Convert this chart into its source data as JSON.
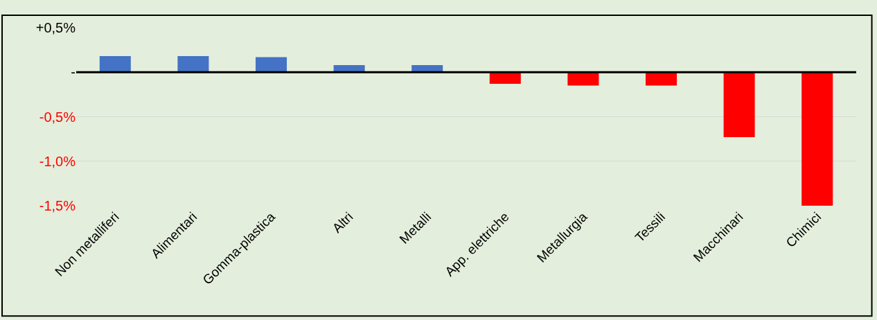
{
  "chart_data": {
    "type": "bar",
    "categories": [
      "Non metalliferi",
      "Alimentari",
      "Gomma-plastica",
      "Altri",
      "Metalli",
      "App. elettriche",
      "Metallurgia",
      "Tessili",
      "Macchinari",
      "Chimici"
    ],
    "values": [
      0.18,
      0.18,
      0.17,
      0.08,
      0.08,
      -0.13,
      -0.15,
      -0.15,
      -0.73,
      -1.5
    ],
    "colors": [
      "#4472c4",
      "#4472c4",
      "#4472c4",
      "#4472c4",
      "#4472c4",
      "#ff0000",
      "#ff0000",
      "#ff0000",
      "#ff0000",
      "#ff0000"
    ],
    "ylim": [
      -1.5,
      0.5
    ],
    "yticks": [
      {
        "value": 0.5,
        "label": "+0,5%"
      },
      {
        "value": 0,
        "label": "-"
      },
      {
        "value": -0.5,
        "label": "-0,5%"
      },
      {
        "value": -1.0,
        "label": "-1,0%"
      },
      {
        "value": -1.5,
        "label": "-1,5%"
      }
    ],
    "grid": "y"
  }
}
